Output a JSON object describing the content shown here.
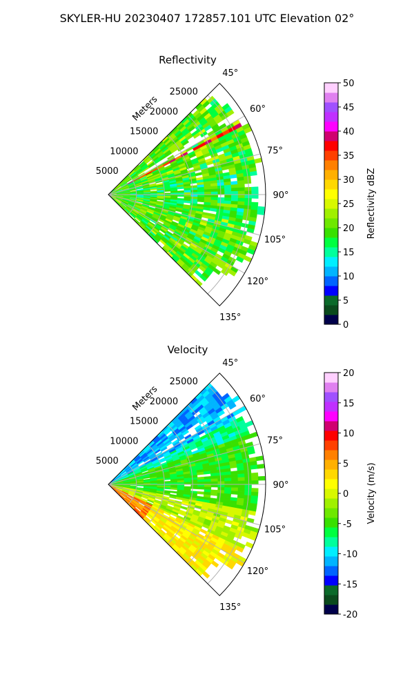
{
  "suptitle": "SKYLER-HU  20230407  172857.101 UTC Elevation 02°",
  "range_label": "Meters",
  "chart_data": [
    {
      "type": "heatmap",
      "title": "Reflectivity",
      "projection": "polar sector (PPI)",
      "theta_ticks": [
        "45°",
        "60°",
        "75°",
        "90°",
        "105°",
        "120°",
        "135°"
      ],
      "theta_range_deg": [
        45,
        135
      ],
      "r_ticks": [
        "5000",
        "10000",
        "15000",
        "20000",
        "25000"
      ],
      "r_max": 28000,
      "grid": true,
      "colorbar": {
        "label": "Reflectivity dBZ",
        "ticks": [
          "0",
          "5",
          "10",
          "15",
          "20",
          "25",
          "30",
          "35",
          "40",
          "45",
          "50"
        ],
        "range": [
          0,
          50
        ]
      },
      "field_notes": "Mostly 15–25 dBZ (green/yellow) echoes; thin 30–40 dBZ streak near 60–65° azimuth",
      "colors": {
        "scale": [
          "#00004a",
          "#0a4a1c",
          "#0b6a2a",
          "#0000ff",
          "#0064ff",
          "#00b4ff",
          "#00eeff",
          "#00ff9c",
          "#00ff40",
          "#38e000",
          "#6ee800",
          "#a0f000",
          "#d8f800",
          "#ffff00",
          "#ffd800",
          "#ffb000",
          "#ff8000",
          "#ff4000",
          "#ff0000",
          "#d00070",
          "#ff00ff",
          "#c030ff",
          "#a050ff",
          "#e080f0",
          "#ffd0ff"
        ],
        "grid": "#b0b0b0"
      }
    },
    {
      "type": "heatmap",
      "title": "Velocity",
      "projection": "polar sector (PPI)",
      "theta_ticks": [
        "45°",
        "60°",
        "75°",
        "90°",
        "105°",
        "120°",
        "135°"
      ],
      "theta_range_deg": [
        45,
        135
      ],
      "r_ticks": [
        "5000",
        "10000",
        "15000",
        "20000",
        "25000"
      ],
      "r_max": 28000,
      "grid": true,
      "colorbar": {
        "label": "Velocity (m/s)",
        "ticks": [
          "-20",
          "-15",
          "-10",
          "-5",
          "0",
          "5",
          "10",
          "15",
          "20"
        ],
        "range": [
          -20,
          20
        ]
      },
      "field_notes": "Cyan/green (-12 to -5 m/s) near 45–70°, green (-5) near 80–105°, yellow/orange (0 to +5) near 110–135°",
      "colors": {
        "scale": [
          "#00004a",
          "#0a4a1c",
          "#0b6a2a",
          "#0000ff",
          "#0064ff",
          "#00b4ff",
          "#00eeff",
          "#00ff9c",
          "#00ff40",
          "#38e000",
          "#6ee800",
          "#a0f000",
          "#d8f800",
          "#ffff00",
          "#ffd800",
          "#ffb000",
          "#ff8000",
          "#ff4000",
          "#ff0000",
          "#d00070",
          "#ff00ff",
          "#c030ff",
          "#a050ff",
          "#e080f0",
          "#ffd0ff"
        ],
        "grid": "#b0b0b0"
      }
    }
  ]
}
